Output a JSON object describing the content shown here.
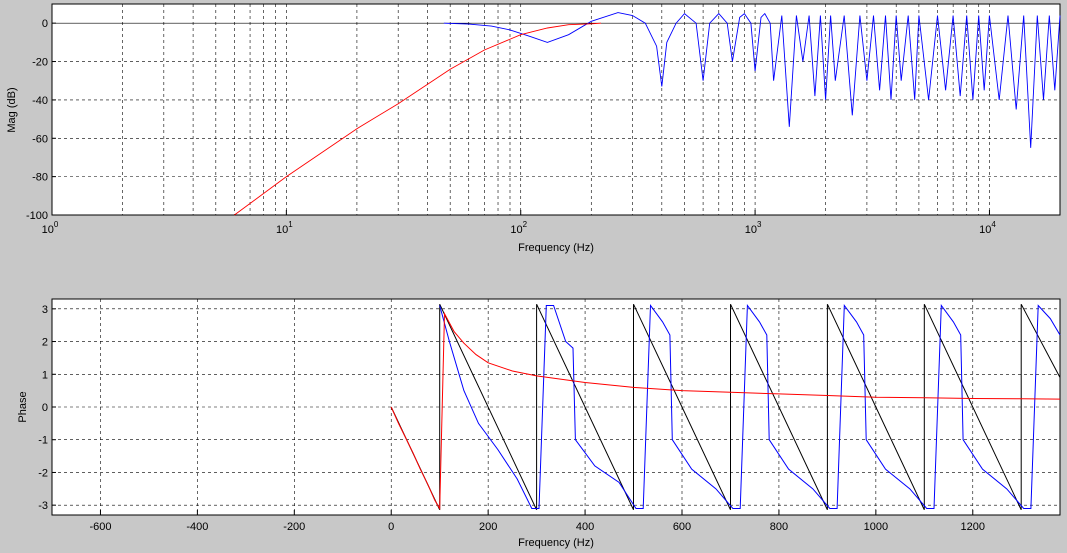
{
  "chart_data": [
    {
      "type": "line",
      "xscale": "log",
      "xlim": [
        1,
        20000
      ],
      "ylim": [
        -100,
        10
      ],
      "grid": true,
      "xlabel": "Frequency (Hz)",
      "ylabel": "Mag (dB)",
      "x_major_ticks": [
        {
          "base": "10",
          "exp": "0",
          "value": 1
        },
        {
          "base": "10",
          "exp": "1",
          "value": 10
        },
        {
          "base": "10",
          "exp": "2",
          "value": 100
        },
        {
          "base": "10",
          "exp": "3",
          "value": 1000
        },
        {
          "base": "10",
          "exp": "4",
          "value": 10000
        }
      ],
      "y_ticks": [
        "0",
        "-20",
        "-40",
        "-60",
        "-80",
        "-100"
      ],
      "series": [
        {
          "color": "#0000ff",
          "x": [
            47,
            60,
            75,
            90,
            110,
            130,
            160,
            200,
            260,
            300,
            340,
            380,
            400,
            420,
            460,
            500,
            560,
            600,
            640,
            700,
            760,
            800,
            860,
            900,
            960,
            1000,
            1060,
            1100,
            1160,
            1200,
            1300,
            1400,
            1500,
            1600,
            1700,
            1800,
            1900,
            2000,
            2100,
            2200,
            2400,
            2600,
            2800,
            3000,
            3200,
            3400,
            3600,
            3800,
            4000,
            4200,
            4500,
            4800,
            5000,
            5500,
            6000,
            6500,
            7000,
            7500,
            8000,
            8500,
            9000,
            9500,
            10000,
            11000,
            12000,
            13000,
            14000,
            15000,
            16000,
            17000,
            18000,
            19000,
            20000
          ],
          "values": [
            0,
            -0.5,
            -1.5,
            -3.5,
            -7,
            -10,
            -6,
            1,
            5.5,
            4,
            0,
            -12,
            -33,
            -10,
            0,
            5,
            0,
            -30,
            0,
            5,
            0,
            -20,
            3,
            5,
            0,
            -25,
            3,
            5,
            0,
            -30,
            4,
            -54,
            4,
            -20,
            4,
            -38,
            4,
            -40,
            4,
            -30,
            4,
            -48,
            4,
            -30,
            4,
            -35,
            4,
            -40,
            4,
            -30,
            4,
            -40,
            4,
            -40,
            4,
            -35,
            4,
            -38,
            4,
            -40,
            4,
            -35,
            4,
            -40,
            4,
            -45,
            4,
            -65,
            4,
            -40,
            4,
            -35,
            4
          ]
        },
        {
          "color": "#ff0000",
          "x": [
            6,
            10,
            20,
            30,
            50,
            70,
            100,
            130,
            160,
            200,
            220
          ],
          "values": [
            -100,
            -80,
            -55,
            -42,
            -24,
            -14,
            -6,
            -2.5,
            -0.8,
            -0.3,
            0
          ]
        }
      ]
    },
    {
      "type": "line",
      "xlim": [
        -700,
        1380
      ],
      "ylim": [
        -3.3,
        3.3
      ],
      "grid": true,
      "xlabel": "Frequency (Hz)",
      "ylabel": "Phase",
      "x_ticks": [
        "-600",
        "-400",
        "-200",
        "0",
        "200",
        "400",
        "600",
        "800",
        "1000",
        "1200"
      ],
      "y_ticks": [
        "3",
        "2",
        "1",
        "0",
        "-1",
        "-2",
        "-3"
      ],
      "series": [
        {
          "color": "#000000",
          "x": [
            0,
            100,
            100,
            300,
            300,
            500,
            500,
            700,
            700,
            900,
            900,
            1100,
            1100,
            1300,
            1300,
            1380
          ],
          "values": [
            0,
            -3.14,
            3.14,
            -3.14,
            3.14,
            -3.14,
            3.14,
            -3.14,
            3.14,
            -3.14,
            3.14,
            -3.14,
            3.14,
            -3.14,
            3.14,
            0.9
          ]
        },
        {
          "color": "#0000ff",
          "x": [
            100,
            120,
            150,
            180,
            220,
            260,
            290,
            305,
            320,
            335,
            360,
            375,
            380,
            420,
            470,
            505,
            520,
            535,
            560,
            575,
            580,
            620,
            670,
            705,
            720,
            735,
            760,
            775,
            780,
            820,
            870,
            905,
            920,
            935,
            960,
            975,
            980,
            1020,
            1070,
            1105,
            1120,
            1135,
            1160,
            1175,
            1180,
            1220,
            1270,
            1305,
            1320,
            1335,
            1360,
            1380
          ],
          "values": [
            3.1,
            2,
            0.5,
            -0.5,
            -1.3,
            -2.2,
            -3.1,
            -3.1,
            3.1,
            3.1,
            2,
            1.8,
            -1,
            -1.8,
            -2.3,
            -3.1,
            -3.1,
            3.1,
            2.6,
            2.2,
            -1,
            -1.9,
            -2.5,
            -3.1,
            -3.1,
            3.1,
            2.6,
            2.2,
            -1,
            -1.9,
            -2.5,
            -3.1,
            -3.1,
            3.1,
            2.6,
            2.2,
            -1,
            -1.9,
            -2.5,
            -3.1,
            -3.1,
            3.1,
            2.6,
            2.2,
            -1,
            -1.9,
            -2.5,
            -3.1,
            -3.1,
            3.1,
            2.7,
            2.2
          ]
        },
        {
          "color": "#ff0000",
          "x": [
            0,
            15,
            30,
            45,
            60,
            75,
            90,
            100,
            110,
            130,
            150,
            175,
            200,
            250,
            300,
            400,
            500,
            600,
            700,
            800,
            900,
            1000,
            1100,
            1200,
            1300,
            1380
          ],
          "values": [
            0,
            -0.5,
            -0.95,
            -1.4,
            -1.9,
            -2.35,
            -2.85,
            -3.1,
            2.85,
            2.3,
            1.95,
            1.6,
            1.35,
            1.1,
            0.95,
            0.75,
            0.6,
            0.5,
            0.45,
            0.4,
            0.35,
            0.3,
            0.28,
            0.26,
            0.25,
            0.24
          ]
        }
      ]
    }
  ]
}
